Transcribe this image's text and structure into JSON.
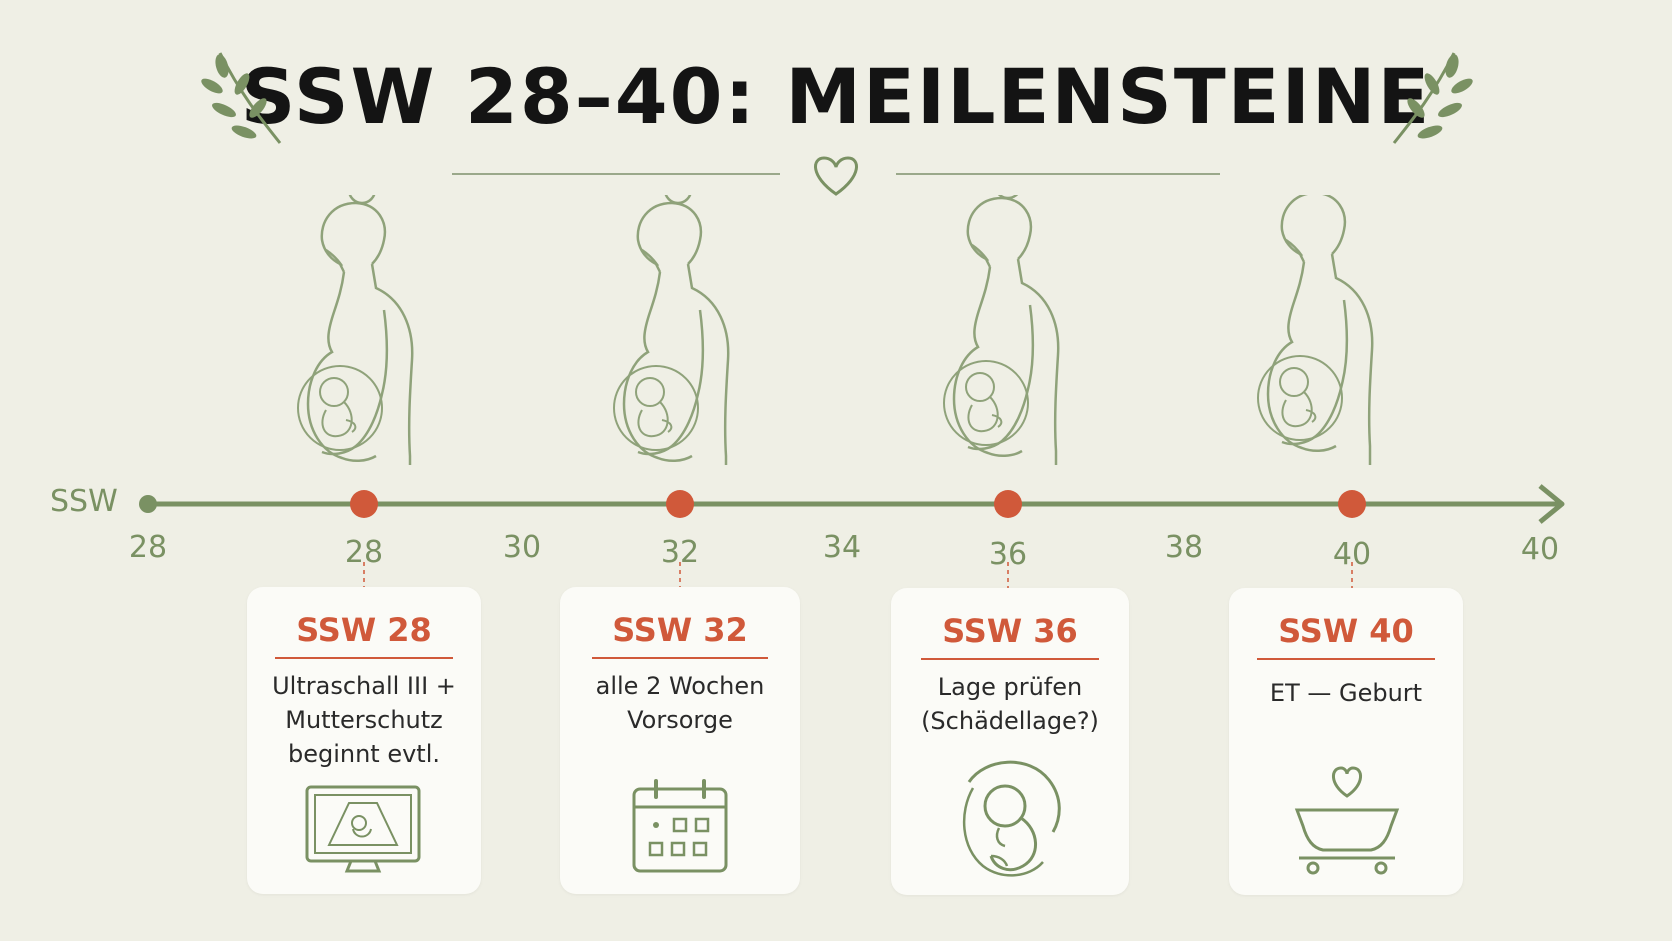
{
  "title": "SSW 28–40: MEILENSTEINE",
  "axis": {
    "label": "SSW",
    "ticks": [
      "28",
      "28",
      "30",
      "32",
      "34",
      "36",
      "38",
      "40",
      "40"
    ]
  },
  "milestones": [
    {
      "heading": "SSW 28",
      "text": "Ultraschall III +\nMutterschutz\nbeginnt evtl.",
      "icon": "ultrasound-monitor-icon"
    },
    {
      "heading": "SSW 32",
      "text": "alle 2 Wochen\nVorsorge",
      "icon": "calendar-icon"
    },
    {
      "heading": "SSW 36",
      "text": "Lage prüfen\n(Schädellage?)",
      "icon": "fetus-position-icon"
    },
    {
      "heading": "SSW 40",
      "text": "ET — Geburt",
      "icon": "baby-crib-icon"
    }
  ],
  "colors": {
    "background": "#efefe5",
    "accent": "#d0593a",
    "line_green": "#7a9163",
    "illustration": "#8fa27a"
  }
}
